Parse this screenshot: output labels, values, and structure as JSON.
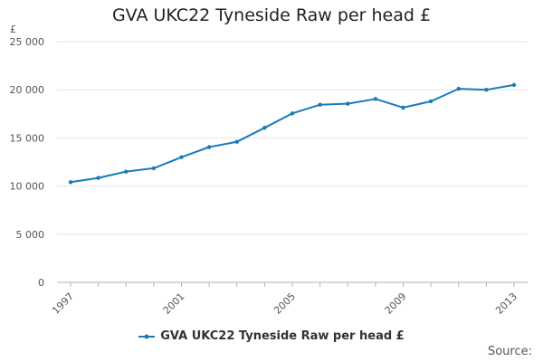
{
  "chart_data": {
    "type": "line",
    "title": "GVA UKC22 Tyneside Raw per head £",
    "ylabel": "£",
    "xlabel": "",
    "x": [
      1997,
      1998,
      1999,
      2000,
      2001,
      2002,
      2003,
      2004,
      2005,
      2006,
      2007,
      2008,
      2009,
      2010,
      2011,
      2012,
      2013
    ],
    "x_tick_labels": [
      "1997",
      "2001",
      "2005",
      "2009",
      "2013"
    ],
    "y_tick_labels": [
      "0",
      "5 000",
      "10 000",
      "15 000",
      "20 000",
      "25 000"
    ],
    "ylim": [
      0,
      25000
    ],
    "grid": "horizontal",
    "legend_position": "bottom",
    "series": [
      {
        "name": "GVA UKC22 Tyneside Raw per head £",
        "color": "#1a7ab8",
        "values": [
          10400,
          10850,
          11500,
          11850,
          13000,
          14050,
          14600,
          16050,
          17550,
          18450,
          18550,
          19050,
          18150,
          18800,
          20100,
          20000,
          20500
        ]
      }
    ]
  },
  "footer": {
    "source_label": "Source:"
  }
}
